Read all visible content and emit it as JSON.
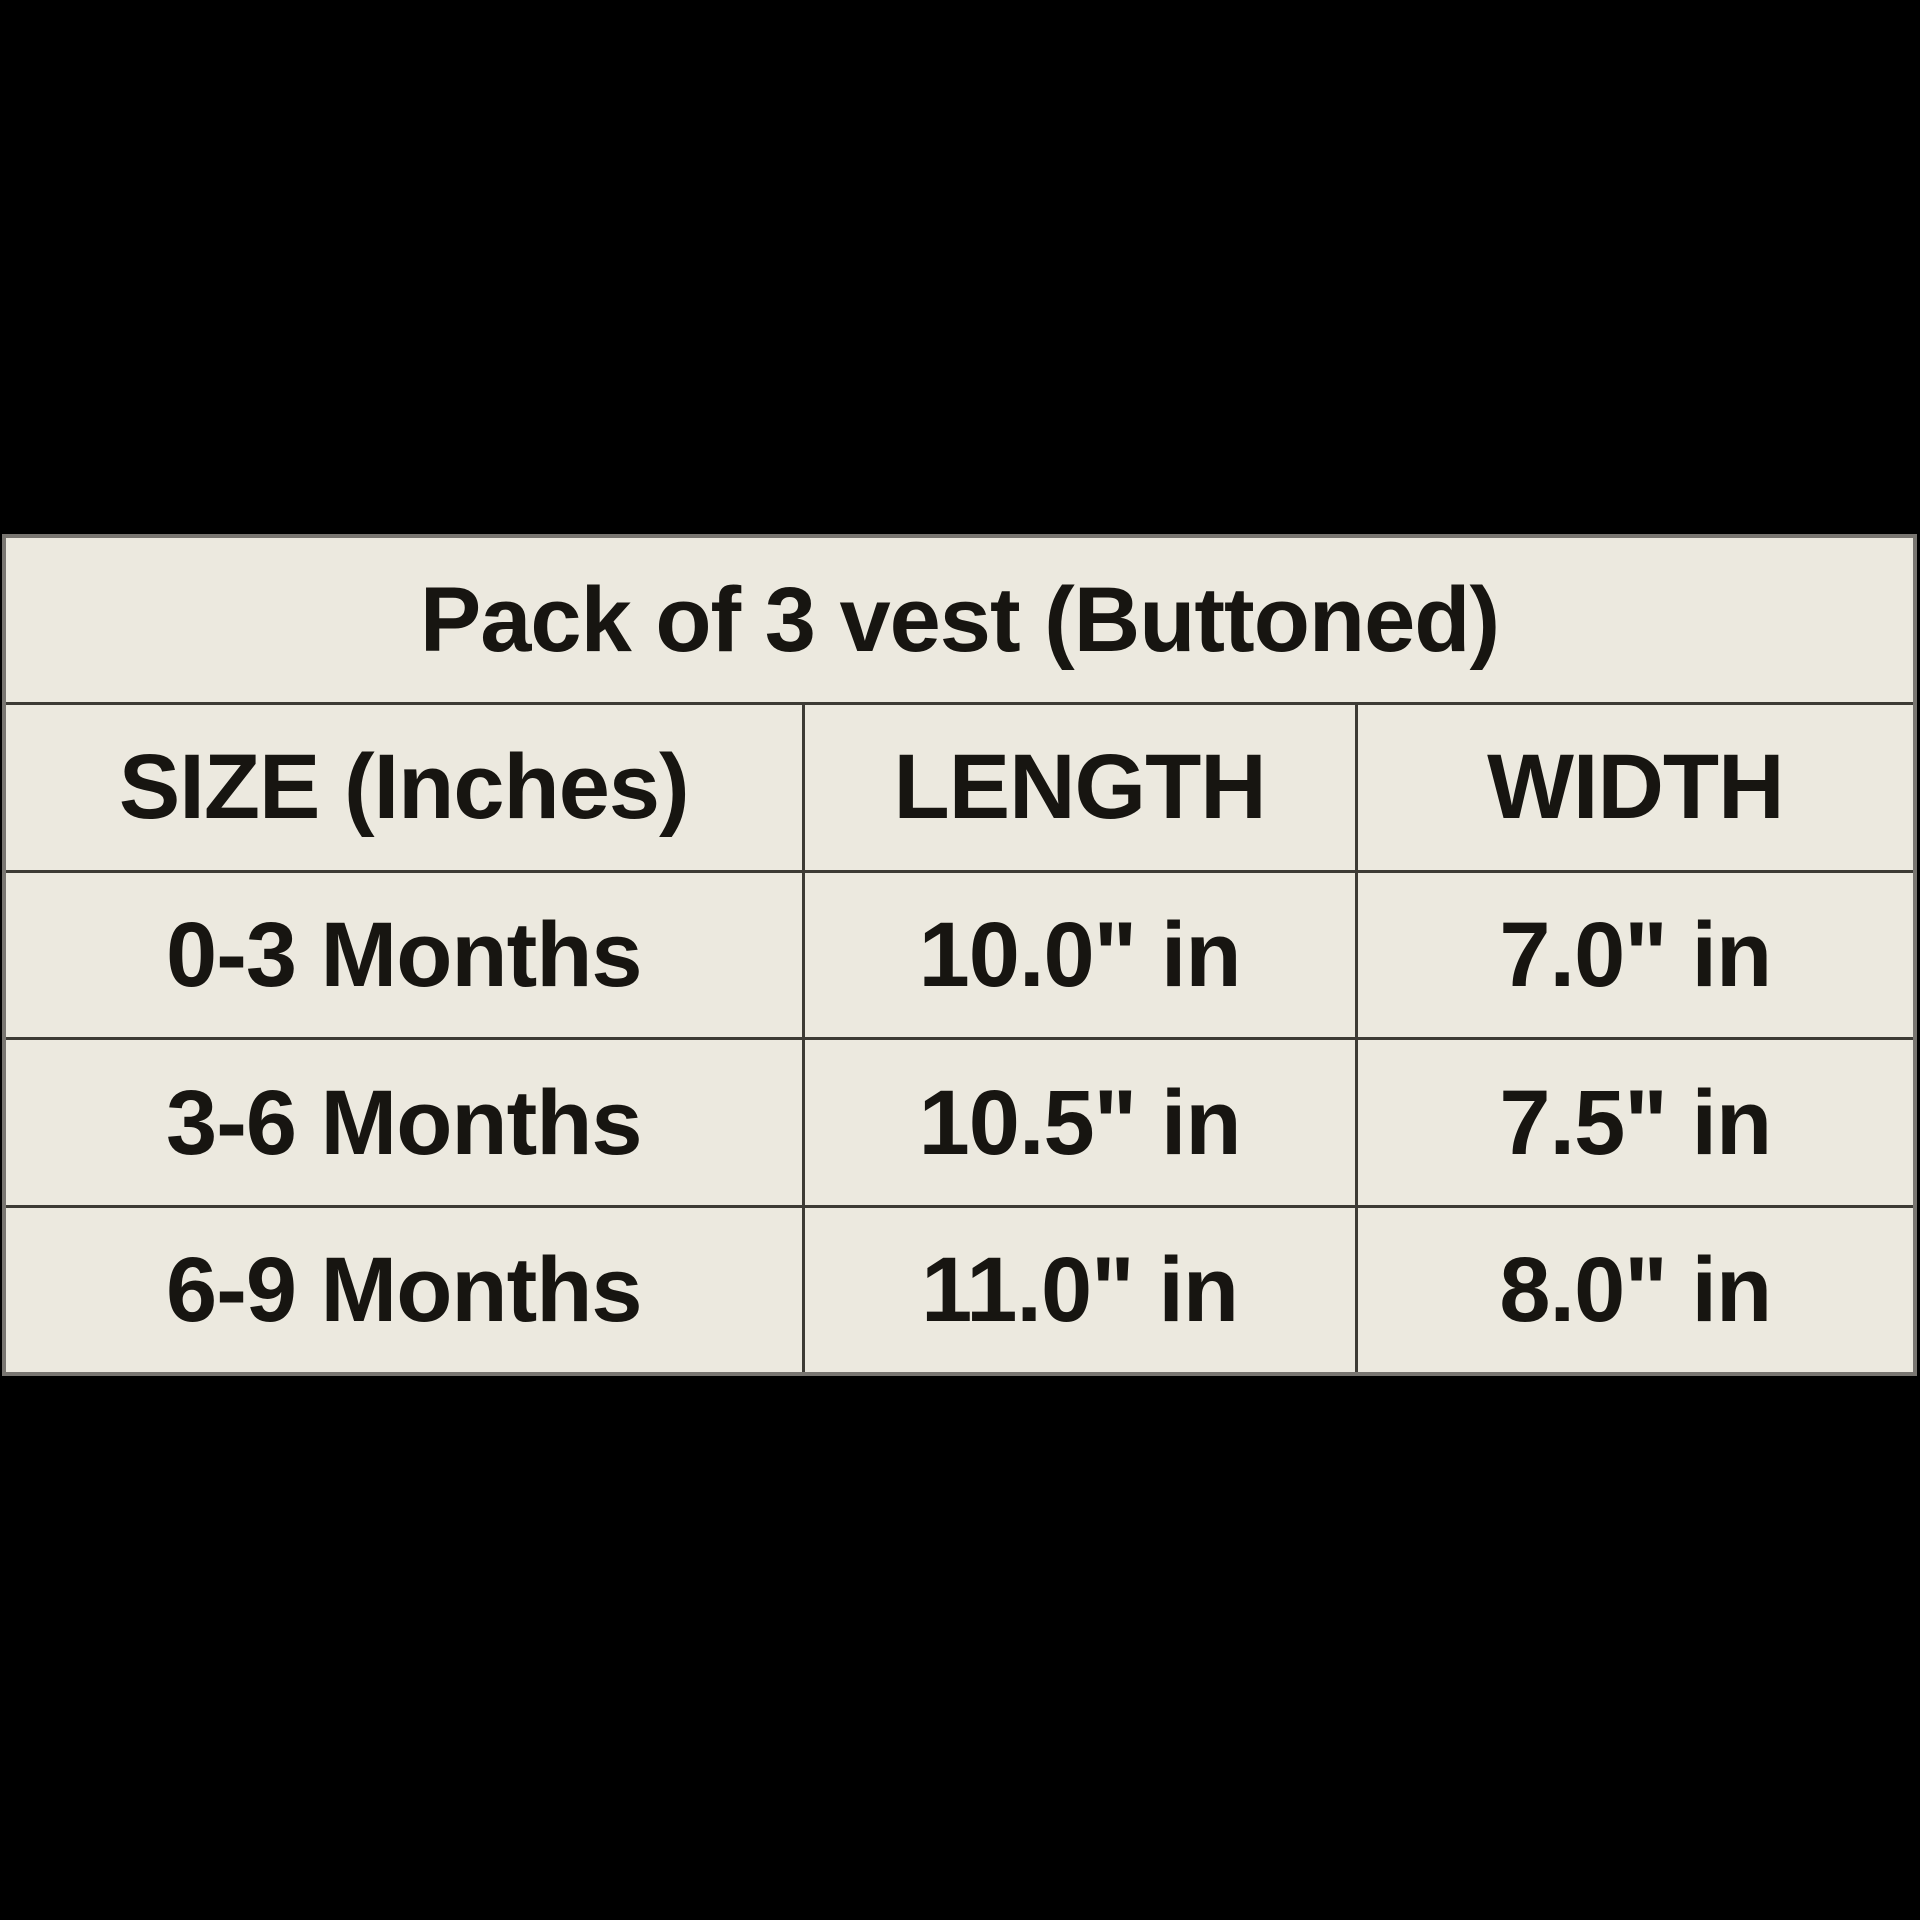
{
  "chart_data": {
    "type": "table",
    "title": "Pack of 3 vest (Buttoned)",
    "columns": [
      "SIZE (Inches)",
      "LENGTH",
      "WIDTH"
    ],
    "rows": [
      [
        "0-3 Months",
        "10.0\" in",
        "7.0\" in"
      ],
      [
        "3-6 Months",
        "10.5\" in",
        "7.5\" in"
      ],
      [
        "6-9 Months",
        "11.0\" in",
        "8.0\" in"
      ]
    ],
    "length_values_inches": [
      10.0,
      10.5,
      11.0
    ],
    "width_values_inches": [
      7.0,
      7.5,
      8.0
    ],
    "layout": {
      "legend": "none",
      "grid": "on"
    }
  },
  "colors": {
    "page_background": "#000000",
    "cell_background": "#ECE9DF",
    "grid_line": "#3D3B35",
    "outer_border": "#797671",
    "text": "#171511"
  }
}
